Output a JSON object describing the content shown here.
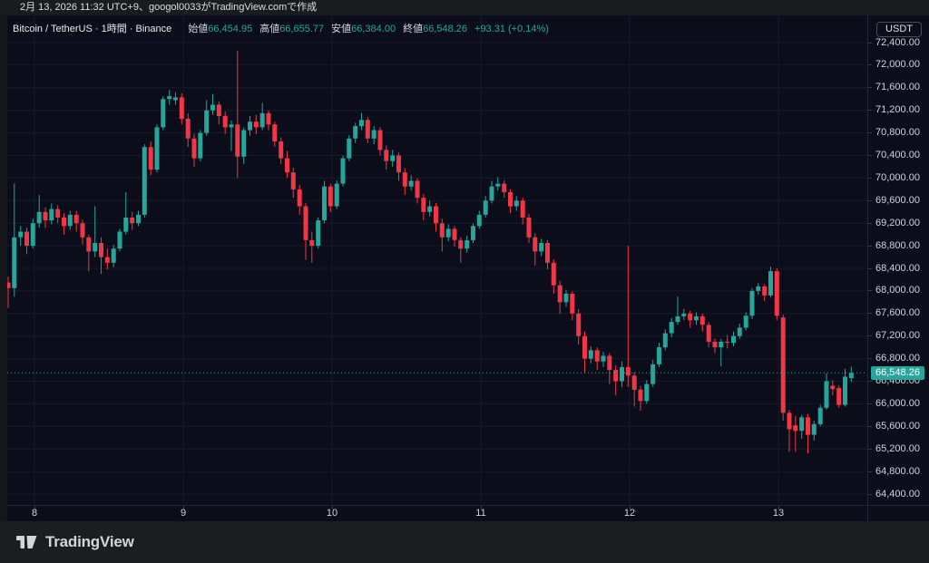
{
  "export_bar": {
    "text": "2月 13, 2026 11:32 UTC+9、googol0033がTradingView.comで作成"
  },
  "legend": {
    "title": "Bitcoin / TetherUS · 1時間 · Binance",
    "ohlc": [
      {
        "label": "始値",
        "value": "66,454.95"
      },
      {
        "label": "高値",
        "value": "66,655.77"
      },
      {
        "label": "安値",
        "value": "66,384.00"
      },
      {
        "label": "終値",
        "value": "66,548.26"
      }
    ],
    "change": "+93.31 (+0.14%)"
  },
  "currency_button": "USDT",
  "price_axis": {
    "labels": [
      "72,400.00",
      "72,000.00",
      "71,600.00",
      "71,200.00",
      "70,800.00",
      "70,400.00",
      "70,000.00",
      "69,600.00",
      "69,200.00",
      "68,800.00",
      "68,400.00",
      "68,000.00",
      "67,600.00",
      "67,200.00",
      "66,800.00",
      "66,400.00",
      "66,000.00",
      "65,600.00",
      "65,200.00",
      "64,800.00",
      "64,400.00"
    ],
    "last_price_label": "66,548.26"
  },
  "time_axis": {
    "labels": [
      "8",
      "9",
      "10",
      "11",
      "12",
      "13"
    ]
  },
  "logo_text": "TradingView",
  "colors": {
    "up": "#26a69a",
    "down": "#f23645",
    "background": "#0b0e1a",
    "grid": "#161b2a",
    "axis_text": "#cfd3dc"
  },
  "chart_data": {
    "type": "candlestick",
    "title": "Bitcoin / TetherUS · 1時間 · Binance",
    "interval": "1h",
    "ylim": [
      64400,
      72400
    ],
    "y_step": 400,
    "x_tick_labels": [
      "8",
      "9",
      "10",
      "11",
      "12",
      "13"
    ],
    "x_tick_candle_index": [
      4.25,
      28.25,
      52.25,
      76.25,
      100.25,
      124.25
    ],
    "last_close": 66548.26,
    "last_ohlc": {
      "open": 66454.95,
      "high": 66655.77,
      "low": 66384.0,
      "close": 66548.26,
      "change": 93.31,
      "change_pct": 0.14
    },
    "candles": [
      [
        68150,
        68250,
        67700,
        68050
      ],
      [
        68050,
        69900,
        67900,
        68950
      ],
      [
        68950,
        69150,
        68800,
        69050
      ],
      [
        69050,
        69120,
        68650,
        68800
      ],
      [
        68800,
        69280,
        68750,
        69200
      ],
      [
        69200,
        69700,
        69120,
        69400
      ],
      [
        69400,
        69480,
        69120,
        69250
      ],
      [
        69250,
        69550,
        69180,
        69450
      ],
      [
        69450,
        69520,
        69200,
        69300
      ],
      [
        69300,
        69380,
        69000,
        69150
      ],
      [
        69150,
        69420,
        69080,
        69350
      ],
      [
        69350,
        69420,
        69050,
        69200
      ],
      [
        69200,
        69260,
        68820,
        68950
      ],
      [
        68950,
        69000,
        68350,
        68700
      ],
      [
        68700,
        69500,
        68600,
        68850
      ],
      [
        68850,
        68950,
        68300,
        68600
      ],
      [
        68600,
        68750,
        68380,
        68500
      ],
      [
        68500,
        68820,
        68420,
        68750
      ],
      [
        68750,
        69100,
        68700,
        69050
      ],
      [
        69050,
        69750,
        69000,
        69300
      ],
      [
        69300,
        69400,
        69080,
        69200
      ],
      [
        69200,
        69420,
        69150,
        69350
      ],
      [
        69350,
        70600,
        69300,
        70550
      ],
      [
        70550,
        70650,
        70050,
        70150
      ],
      [
        70150,
        70950,
        70100,
        70900
      ],
      [
        70900,
        71450,
        70850,
        71400
      ],
      [
        71400,
        71560,
        71300,
        71450
      ],
      [
        71380,
        71520,
        71300,
        71430
      ],
      [
        71430,
        71500,
        70950,
        71050
      ],
      [
        71050,
        71150,
        70550,
        70700
      ],
      [
        70700,
        70780,
        70200,
        70350
      ],
      [
        70350,
        70850,
        70300,
        70800
      ],
      [
        70800,
        71380,
        70750,
        71200
      ],
      [
        71200,
        71490,
        71120,
        71300
      ],
      [
        71300,
        71360,
        70950,
        71100
      ],
      [
        71100,
        71180,
        70780,
        70900
      ],
      [
        70900,
        71020,
        70480,
        70950
      ],
      [
        70950,
        72250,
        70000,
        70380
      ],
      [
        70380,
        70900,
        70250,
        70850
      ],
      [
        70850,
        71100,
        70750,
        71000
      ],
      [
        71000,
        71120,
        70780,
        70900
      ],
      [
        70900,
        71330,
        70850,
        71150
      ],
      [
        71150,
        71200,
        70850,
        70950
      ],
      [
        70950,
        71000,
        70550,
        70650
      ],
      [
        70650,
        70720,
        70250,
        70350
      ],
      [
        70350,
        70480,
        70000,
        70100
      ],
      [
        70100,
        70180,
        69650,
        69800
      ],
      [
        69800,
        69880,
        69350,
        69500
      ],
      [
        69500,
        69560,
        68550,
        68900
      ],
      [
        68900,
        69050,
        68500,
        68800
      ],
      [
        68800,
        69300,
        68750,
        69250
      ],
      [
        69250,
        69950,
        69200,
        69850
      ],
      [
        69850,
        69900,
        69400,
        69500
      ],
      [
        69500,
        69960,
        69450,
        69900
      ],
      [
        69900,
        70400,
        69850,
        70350
      ],
      [
        70350,
        70760,
        70300,
        70700
      ],
      [
        70700,
        70980,
        70620,
        70920
      ],
      [
        70920,
        71150,
        70850,
        71030
      ],
      [
        71030,
        71080,
        70620,
        70700
      ],
      [
        70700,
        70920,
        70600,
        70850
      ],
      [
        70850,
        70900,
        70400,
        70500
      ],
      [
        70500,
        70580,
        70150,
        70300
      ],
      [
        70300,
        70500,
        70200,
        70400
      ],
      [
        70400,
        70450,
        69950,
        70100
      ],
      [
        70100,
        70180,
        69700,
        69850
      ],
      [
        69850,
        70050,
        69780,
        69950
      ],
      [
        69950,
        70000,
        69550,
        69650
      ],
      [
        69650,
        69720,
        69250,
        69400
      ],
      [
        69400,
        69600,
        69320,
        69500
      ],
      [
        69500,
        69560,
        69050,
        69200
      ],
      [
        69200,
        69280,
        68700,
        68950
      ],
      [
        68950,
        69180,
        68880,
        69100
      ],
      [
        69100,
        69150,
        68780,
        68900
      ],
      [
        68900,
        68950,
        68500,
        68750
      ],
      [
        68750,
        68980,
        68680,
        68900
      ],
      [
        68900,
        69200,
        68850,
        69150
      ],
      [
        69150,
        69420,
        69100,
        69350
      ],
      [
        69350,
        69680,
        69300,
        69600
      ],
      [
        69600,
        69950,
        69550,
        69850
      ],
      [
        69850,
        70020,
        69780,
        69900
      ],
      [
        69900,
        69960,
        69650,
        69750
      ],
      [
        69750,
        69800,
        69380,
        69500
      ],
      [
        69500,
        69680,
        69420,
        69600
      ],
      [
        69600,
        69650,
        69180,
        69300
      ],
      [
        69300,
        69360,
        68850,
        68950
      ],
      [
        68950,
        69020,
        68450,
        68700
      ],
      [
        68700,
        68920,
        68620,
        68850
      ],
      [
        68850,
        68900,
        68380,
        68500
      ],
      [
        68500,
        68560,
        67950,
        68100
      ],
      [
        68100,
        68180,
        67600,
        67800
      ],
      [
        67800,
        68020,
        67720,
        67950
      ],
      [
        67950,
        68000,
        67480,
        67600
      ],
      [
        67600,
        67680,
        67050,
        67200
      ],
      [
        67200,
        67280,
        66550,
        66800
      ],
      [
        66800,
        67020,
        66720,
        66950
      ],
      [
        66950,
        67000,
        66600,
        66750
      ],
      [
        66750,
        66920,
        66650,
        66850
      ],
      [
        66850,
        66900,
        66350,
        66600
      ],
      [
        66600,
        66680,
        66150,
        66400
      ],
      [
        66400,
        66750,
        66300,
        66650
      ],
      [
        66650,
        68800,
        66300,
        66500
      ],
      [
        66500,
        66560,
        65950,
        66250
      ],
      [
        66250,
        66320,
        65880,
        66050
      ],
      [
        66050,
        66420,
        66000,
        66350
      ],
      [
        66350,
        66780,
        66300,
        66700
      ],
      [
        66700,
        67080,
        66650,
        67000
      ],
      [
        67000,
        67320,
        66950,
        67250
      ],
      [
        67250,
        67520,
        67180,
        67450
      ],
      [
        67450,
        67900,
        67400,
        67550
      ],
      [
        67550,
        67680,
        67480,
        67600
      ],
      [
        67600,
        67650,
        67350,
        67480
      ],
      [
        67480,
        67620,
        67400,
        67550
      ],
      [
        67550,
        67600,
        67280,
        67400
      ],
      [
        67400,
        67450,
        67000,
        67100
      ],
      [
        67100,
        67160,
        66900,
        67000
      ],
      [
        67000,
        67150,
        66660,
        67100
      ],
      [
        67100,
        67220,
        66980,
        67080
      ],
      [
        67080,
        67280,
        67020,
        67200
      ],
      [
        67200,
        67420,
        67150,
        67350
      ],
      [
        67350,
        67620,
        67300,
        67560
      ],
      [
        67560,
        68050,
        67500,
        68000
      ],
      [
        68000,
        68140,
        67930,
        68080
      ],
      [
        68080,
        68120,
        67820,
        67920
      ],
      [
        67920,
        68430,
        67880,
        68350
      ],
      [
        68350,
        68400,
        67480,
        67560
      ],
      [
        67530,
        67580,
        65700,
        65840
      ],
      [
        65840,
        65890,
        65150,
        65550
      ],
      [
        65620,
        65780,
        65150,
        65520
      ],
      [
        65520,
        65800,
        65380,
        65760
      ],
      [
        65760,
        65820,
        65120,
        65450
      ],
      [
        65450,
        65700,
        65350,
        65640
      ],
      [
        65640,
        65980,
        65600,
        65930
      ],
      [
        65930,
        66540,
        65900,
        66400
      ],
      [
        66320,
        66420,
        66150,
        66260
      ],
      [
        66280,
        66330,
        65930,
        65980
      ],
      [
        65980,
        66620,
        65950,
        66480
      ],
      [
        66454.95,
        66655.77,
        66384.0,
        66548.26
      ]
    ]
  }
}
